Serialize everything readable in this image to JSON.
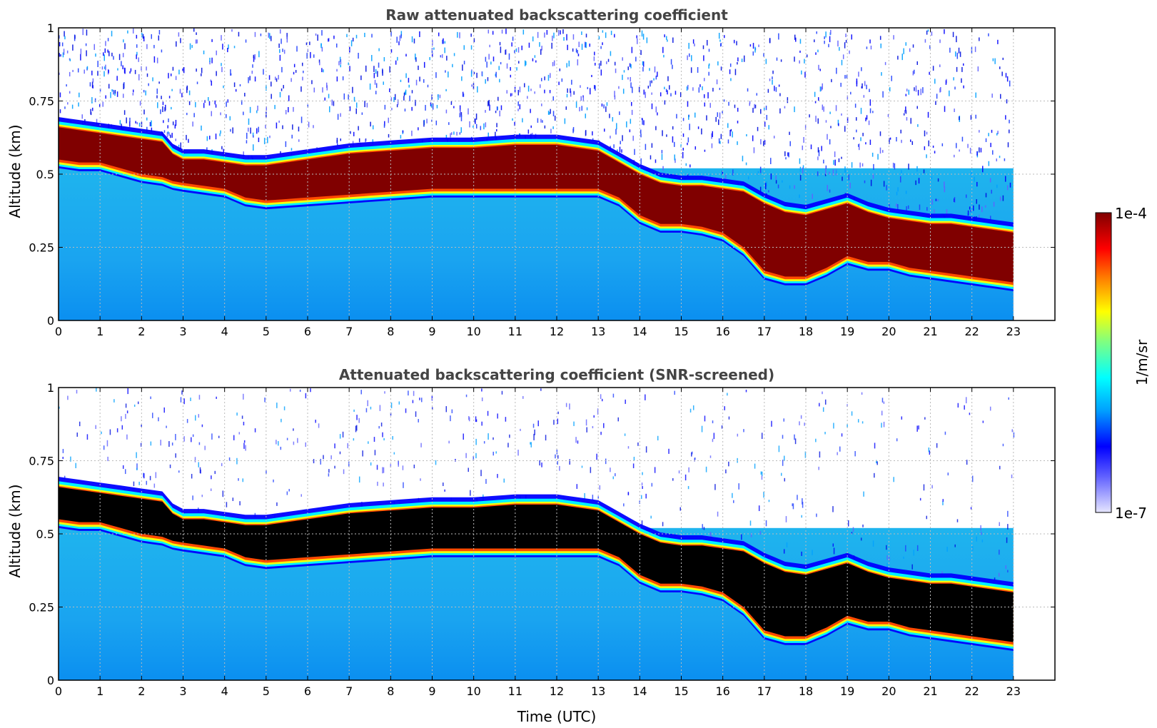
{
  "chart_data": [
    {
      "type": "heatmap",
      "title": "Raw attenuated backscattering coefficient",
      "xlabel": "",
      "ylabel": "Altitude (km)",
      "xlim": [
        0,
        24
      ],
      "ylim": [
        0,
        1
      ],
      "xticks": [
        0,
        1,
        2,
        3,
        4,
        5,
        6,
        7,
        8,
        9,
        10,
        11,
        12,
        13,
        14,
        15,
        16,
        17,
        18,
        19,
        20,
        21,
        22,
        23
      ],
      "xtick_labels": [
        "0",
        "1",
        "2",
        "3",
        "4",
        "5",
        "6",
        "7",
        "8",
        "9",
        "10",
        "11",
        "12",
        "13",
        "14",
        "15",
        "16",
        "17",
        "18",
        "19",
        "20",
        "21",
        "22",
        "23"
      ],
      "yticks": [
        0,
        0.25,
        0.5,
        0.75,
        1
      ],
      "ytick_labels": [
        "0",
        "0.25",
        "0.5",
        "0.75",
        "1"
      ],
      "grid": true,
      "data_end_hour": 23,
      "saturated_color": "#800000",
      "layer": {
        "hours": [
          0,
          0.5,
          1,
          1.5,
          2,
          2.5,
          2.6,
          3,
          3.5,
          4,
          4.5,
          5,
          6,
          7,
          8,
          9,
          10,
          11,
          12,
          13,
          13.5,
          14,
          14.5,
          15,
          15.5,
          16,
          16.5,
          17,
          17.5,
          18,
          18.5,
          19,
          19.5,
          20,
          20.5,
          21,
          21.5,
          22,
          22.5,
          23
        ],
        "top_km": [
          0.66,
          0.65,
          0.64,
          0.63,
          0.62,
          0.61,
          0.58,
          0.55,
          0.55,
          0.54,
          0.53,
          0.53,
          0.55,
          0.57,
          0.58,
          0.59,
          0.59,
          0.6,
          0.6,
          0.58,
          0.54,
          0.5,
          0.47,
          0.46,
          0.46,
          0.45,
          0.44,
          0.4,
          0.37,
          0.36,
          0.38,
          0.4,
          0.37,
          0.35,
          0.34,
          0.33,
          0.33,
          0.32,
          0.31,
          0.3
        ],
        "base_km": [
          0.55,
          0.54,
          0.54,
          0.52,
          0.5,
          0.49,
          0.48,
          0.47,
          0.46,
          0.45,
          0.42,
          0.41,
          0.42,
          0.43,
          0.44,
          0.45,
          0.45,
          0.45,
          0.45,
          0.45,
          0.42,
          0.36,
          0.33,
          0.33,
          0.32,
          0.3,
          0.25,
          0.17,
          0.15,
          0.15,
          0.18,
          0.22,
          0.2,
          0.2,
          0.18,
          0.17,
          0.16,
          0.15,
          0.14,
          0.13
        ]
      }
    },
    {
      "type": "heatmap",
      "title": "Attenuated backscattering coefficient (SNR-screened)",
      "xlabel": "Time (UTC)",
      "ylabel": "Altitude (km)",
      "xlim": [
        0,
        24
      ],
      "ylim": [
        0,
        1
      ],
      "xticks": [
        0,
        1,
        2,
        3,
        4,
        5,
        6,
        7,
        8,
        9,
        10,
        11,
        12,
        13,
        14,
        15,
        16,
        17,
        18,
        19,
        20,
        21,
        22,
        23
      ],
      "xtick_labels": [
        "0",
        "1",
        "2",
        "3",
        "4",
        "5",
        "6",
        "7",
        "8",
        "9",
        "10",
        "11",
        "12",
        "13",
        "14",
        "15",
        "16",
        "17",
        "18",
        "19",
        "20",
        "21",
        "22",
        "23"
      ],
      "yticks": [
        0,
        0.25,
        0.5,
        0.75,
        1
      ],
      "ytick_labels": [
        "0",
        "0.25",
        "0.5",
        "0.75",
        "1"
      ],
      "grid": true,
      "data_end_hour": 23,
      "saturated_color": "#000000",
      "layer": {
        "hours": [
          0,
          0.5,
          1,
          1.5,
          2,
          2.5,
          2.6,
          3,
          3.5,
          4,
          4.5,
          5,
          6,
          7,
          8,
          9,
          10,
          11,
          12,
          13,
          13.5,
          14,
          14.5,
          15,
          15.5,
          16,
          16.5,
          17,
          17.5,
          18,
          18.5,
          19,
          19.5,
          20,
          20.5,
          21,
          21.5,
          22,
          22.5,
          23
        ],
        "top_km": [
          0.66,
          0.65,
          0.64,
          0.63,
          0.62,
          0.61,
          0.58,
          0.55,
          0.55,
          0.54,
          0.53,
          0.53,
          0.55,
          0.57,
          0.58,
          0.59,
          0.59,
          0.6,
          0.6,
          0.58,
          0.54,
          0.5,
          0.47,
          0.46,
          0.46,
          0.45,
          0.44,
          0.4,
          0.37,
          0.36,
          0.38,
          0.4,
          0.37,
          0.35,
          0.34,
          0.33,
          0.33,
          0.32,
          0.31,
          0.3
        ],
        "base_km": [
          0.55,
          0.54,
          0.54,
          0.52,
          0.5,
          0.49,
          0.48,
          0.47,
          0.46,
          0.45,
          0.42,
          0.41,
          0.42,
          0.43,
          0.44,
          0.45,
          0.45,
          0.45,
          0.45,
          0.45,
          0.42,
          0.36,
          0.33,
          0.33,
          0.32,
          0.3,
          0.25,
          0.17,
          0.15,
          0.15,
          0.18,
          0.22,
          0.2,
          0.2,
          0.18,
          0.17,
          0.16,
          0.15,
          0.14,
          0.13
        ]
      }
    }
  ],
  "colorbar": {
    "max_label": "1e-4",
    "min_label": "1e-7",
    "unit_label": "1/m/sr",
    "scale": "log",
    "range": [
      1e-07,
      0.0001
    ],
    "colormap": [
      "#e6e6ff",
      "#0000ff",
      "#00a0ff",
      "#00ffff",
      "#80ff80",
      "#ffff00",
      "#ff8000",
      "#ff0000",
      "#800000"
    ]
  }
}
